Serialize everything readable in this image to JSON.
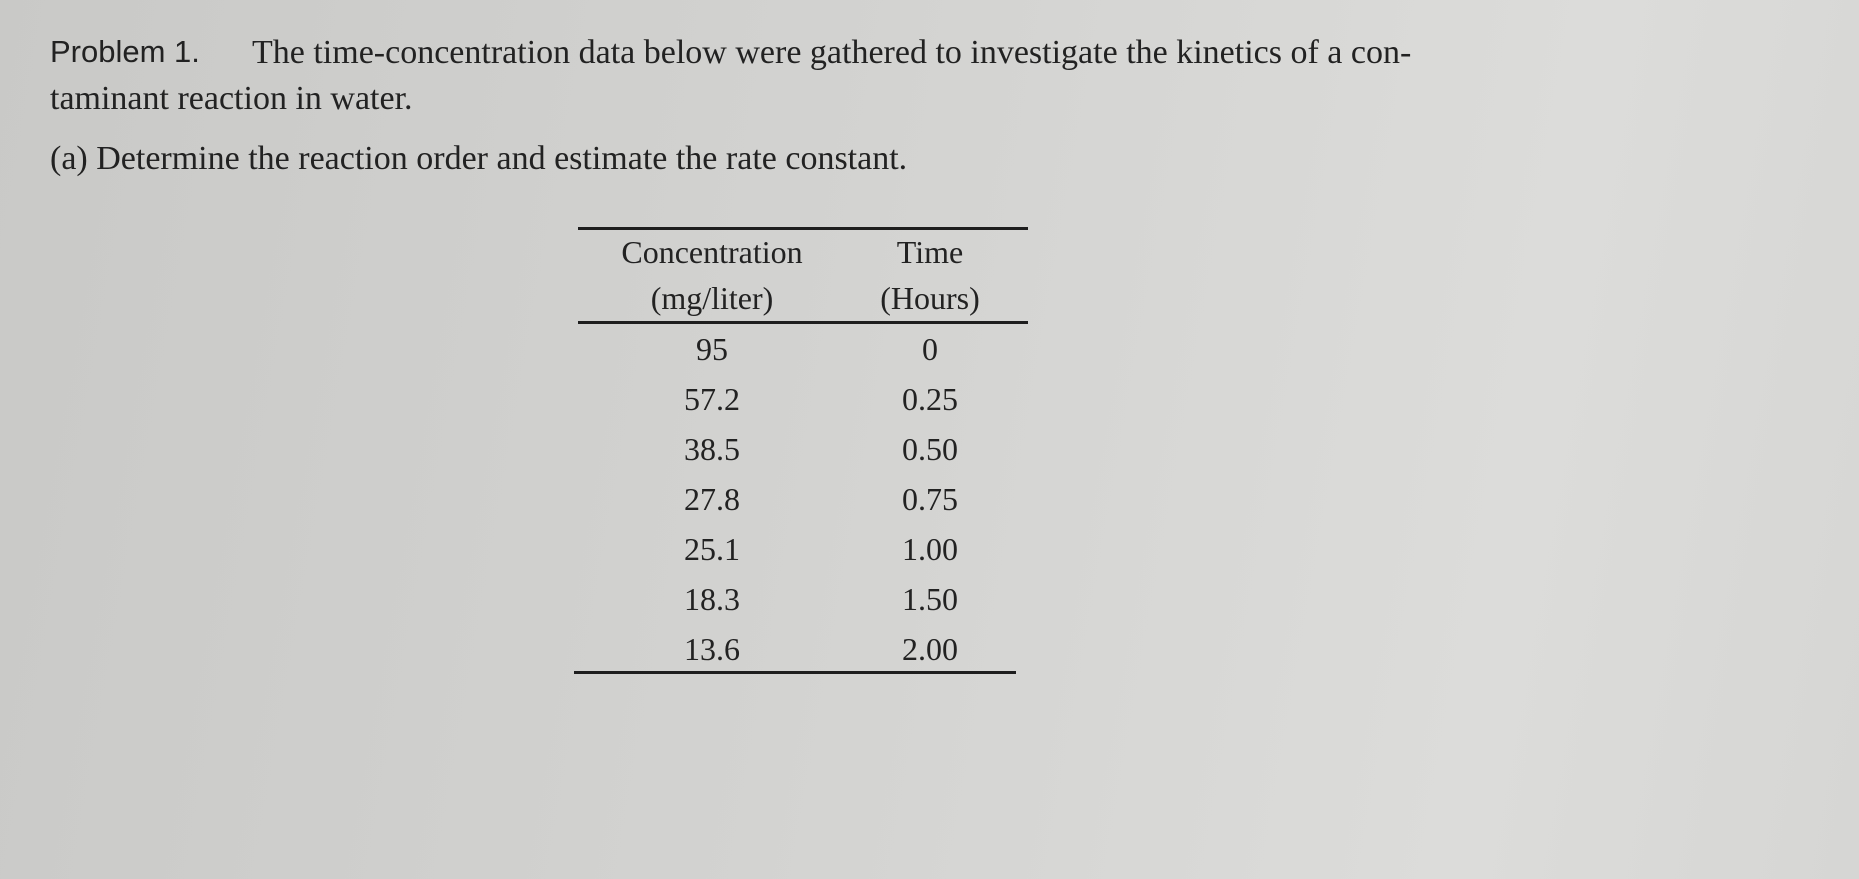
{
  "problem": {
    "label": "Problem 1.",
    "lines": [
      "The time-concentration data below were gathered to investigate the kinetics of a con-",
      "taminant reaction in water."
    ],
    "part_a": "(a) Determine the reaction order and estimate the rate constant."
  },
  "table": {
    "header": [
      [
        "Concentration",
        "(mg/liter)"
      ],
      [
        "Time",
        "(Hours)"
      ]
    ],
    "rows": [
      [
        "95",
        "0"
      ],
      [
        "57.2",
        "0.25"
      ],
      [
        "38.5",
        "0.50"
      ],
      [
        "27.8",
        "0.75"
      ],
      [
        "25.1",
        "1.00"
      ],
      [
        "18.3",
        "1.50"
      ],
      [
        "13.6",
        "2.00"
      ]
    ]
  }
}
